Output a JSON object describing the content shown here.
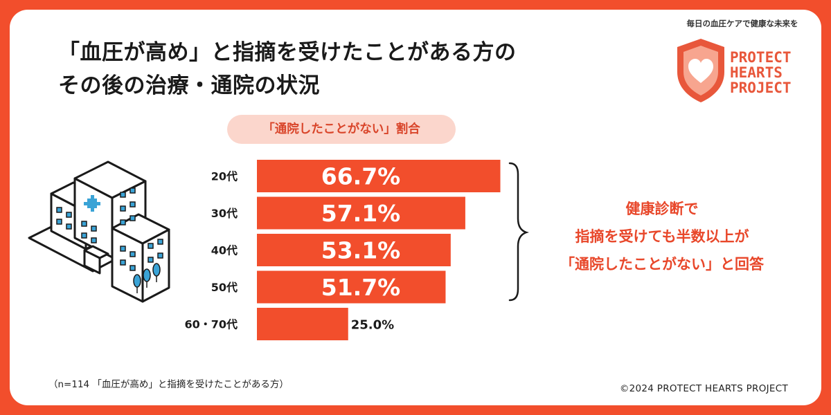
{
  "header": {
    "title_lines": [
      "「血圧が高め」と指摘を受けたことがある方の",
      "その後の治療・通院の状況"
    ]
  },
  "brand": {
    "tagline": "毎日の血圧ケアで健康な未来を",
    "logo_lines": [
      "PROTECT",
      "HEARTS",
      "PROJECT"
    ],
    "accent_color": "#f24e2c",
    "shield_color": "#e8573b"
  },
  "chart_data": {
    "type": "bar",
    "orientation": "horizontal",
    "title": "「通院したことがない」割合",
    "categories": [
      "20代",
      "30代",
      "40代",
      "50代",
      "60・70代"
    ],
    "values": [
      66.7,
      57.1,
      53.1,
      51.7,
      25.0
    ],
    "value_labels": [
      "66.7%",
      "57.1%",
      "53.1%",
      "51.7%",
      "25.0%"
    ],
    "unit": "%",
    "xlim": [
      0,
      100
    ],
    "grid": false,
    "bar_color": "#f24e2c"
  },
  "summary": {
    "lines": [
      "健康診断で",
      "指摘を受けても半数以上が",
      "「通院したことがない」と回答"
    ]
  },
  "footer": {
    "note": "（n=114 「血圧が高め」と指摘を受けたことがある方）",
    "copyright": "©2024 PROTECT HEARTS PROJECT"
  }
}
